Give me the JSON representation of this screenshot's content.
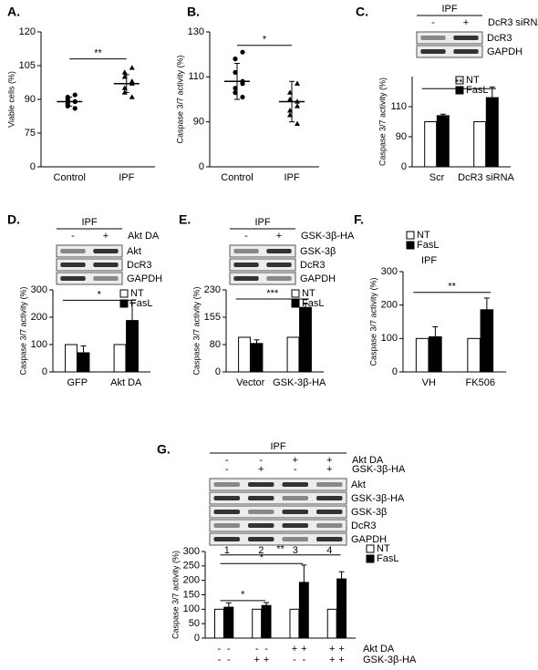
{
  "chart_data": [
    {
      "type": "dot",
      "panel": "A.",
      "y_label": "Viable cells (%)",
      "categories": [
        "Control",
        "IPF"
      ],
      "points": [
        [
          86,
          87,
          88,
          89,
          89,
          90,
          91,
          92
        ],
        [
          91,
          93,
          95,
          97,
          98,
          100,
          102,
          104
        ]
      ],
      "values": [
        89,
        97
      ],
      "errors": [
        2,
        4
      ],
      "ylim": [
        0,
        120
      ],
      "yticks": [
        0,
        75,
        90,
        105,
        120
      ],
      "axis_break": true,
      "annotations": [
        "**"
      ]
    },
    {
      "type": "dot",
      "panel": "B.",
      "y_label": "Caspase 3/7 activity (%)",
      "categories": [
        "Control",
        "IPF"
      ],
      "points": [
        [
          101,
          103,
          105,
          107,
          108,
          112,
          118,
          121
        ],
        [
          86,
          93,
          95,
          97,
          99,
          100,
          103,
          107
        ]
      ],
      "values": [
        108,
        99
      ],
      "errors": [
        8,
        9
      ],
      "ylim": [
        0,
        130
      ],
      "yticks": [
        0,
        90,
        110,
        130
      ],
      "axis_break": true,
      "annotations": [
        "*"
      ]
    },
    {
      "type": "bar",
      "panel": "C.",
      "y_label": "Caspase 3/7 activity (%)",
      "categories": [
        "Scr",
        "DcR3 siRNA"
      ],
      "series": [
        {
          "name": "NT",
          "color": "#ffffff",
          "values": [
            100,
            100
          ]
        },
        {
          "name": "FasL",
          "color": "#000000",
          "values": [
            104,
            116
          ],
          "errors": [
            1,
            7
          ]
        }
      ],
      "ylim": [
        0,
        130
      ],
      "yticks": [
        0,
        90,
        110
      ],
      "axis_break": true,
      "annotations": [
        "**"
      ]
    },
    {
      "type": "bar",
      "panel": "D.",
      "y_label": "Caspase 3/7 activity (%)",
      "categories": [
        "GFP",
        "Akt DA"
      ],
      "series": [
        {
          "name": "NT",
          "color": "#ffffff",
          "values": [
            100,
            100
          ]
        },
        {
          "name": "FasL",
          "color": "#000000",
          "values": [
            70,
            188
          ],
          "errors": [
            25,
            65
          ]
        }
      ],
      "ylim": [
        0,
        300
      ],
      "yticks": [
        0,
        100,
        200,
        300
      ],
      "annotations": [
        "*"
      ]
    },
    {
      "type": "bar",
      "panel": "E.",
      "y_label": "Caspase 3/7 activity (%)",
      "categories": [
        "Vector",
        "GSK-3β-HA"
      ],
      "series": [
        {
          "name": "NT",
          "color": "#ffffff",
          "values": [
            100,
            100
          ]
        },
        {
          "name": "FasL",
          "color": "#000000",
          "values": [
            83,
            182
          ],
          "errors": [
            10,
            10
          ]
        }
      ],
      "ylim": [
        0,
        230
      ],
      "yticks": [
        0,
        80,
        155,
        230
      ],
      "axis_break": true,
      "annotations": [
        "***"
      ]
    },
    {
      "type": "bar",
      "panel": "F.",
      "title": "IPF",
      "y_label": "Caspase 3/7 activity (%)",
      "categories": [
        "VH",
        "FK506"
      ],
      "series": [
        {
          "name": "NT",
          "color": "#ffffff",
          "values": [
            100,
            100
          ]
        },
        {
          "name": "FasL",
          "color": "#000000",
          "values": [
            105,
            186
          ],
          "errors": [
            30,
            35
          ]
        }
      ],
      "ylim": [
        0,
        300
      ],
      "yticks": [
        0,
        100,
        200,
        300
      ],
      "annotations": [
        "**"
      ]
    },
    {
      "type": "bar",
      "panel": "G.",
      "y_label": "Caspase 3/7 activity (%)",
      "categories": [
        null,
        null,
        null,
        null
      ],
      "series": [
        {
          "name": "NT",
          "color": "#ffffff",
          "values": [
            100,
            100,
            100,
            100
          ]
        },
        {
          "name": "FasL",
          "color": "#000000",
          "values": [
            107,
            113,
            193,
            205
          ],
          "errors": [
            15,
            10,
            60,
            25
          ]
        }
      ],
      "ylim": [
        0,
        300
      ],
      "yticks": [
        0,
        50,
        100,
        150,
        200,
        250,
        300
      ],
      "annotations": [
        "*",
        "*",
        "**"
      ],
      "conditions": [
        {
          "label": "Akt DA",
          "signs": [
            "-",
            "-",
            "-",
            "-",
            "+",
            "+",
            "+",
            "+"
          ]
        },
        {
          "label": "GSK-3β-HA",
          "signs": [
            "-",
            "-",
            "+",
            "+",
            "-",
            "-",
            "+",
            "+"
          ]
        }
      ]
    }
  ],
  "blots": [
    {
      "header": "IPF",
      "conditions": [
        {
          "label": "DcR3 siRNA",
          "signs": [
            "-",
            "+"
          ]
        }
      ],
      "rows": [
        "DcR3",
        "GAPDH"
      ]
    },
    {
      "header": "IPF",
      "conditions": [
        {
          "label": "Akt DA",
          "signs": [
            "-",
            "+"
          ]
        }
      ],
      "rows": [
        "Akt",
        "DcR3",
        "GAPDH"
      ]
    },
    {
      "header": "IPF",
      "conditions": [
        {
          "label": "GSK-3β-HA",
          "signs": [
            "-",
            "+"
          ]
        }
      ],
      "rows": [
        "GSK-3β",
        "DcR3",
        "GAPDH"
      ]
    },
    {
      "header": "IPF",
      "conditions": [
        {
          "label": "Akt DA",
          "signs": [
            "-",
            "-",
            "+",
            "+"
          ]
        },
        {
          "label": "GSK-3β-HA",
          "signs": [
            "-",
            "+",
            "-",
            "+"
          ]
        }
      ],
      "rows": [
        "Akt",
        "GSK-3β-HA",
        "GSK-3β",
        "DcR3",
        "GAPDH"
      ],
      "lanes": [
        "1",
        "2",
        "3",
        "4"
      ]
    }
  ]
}
